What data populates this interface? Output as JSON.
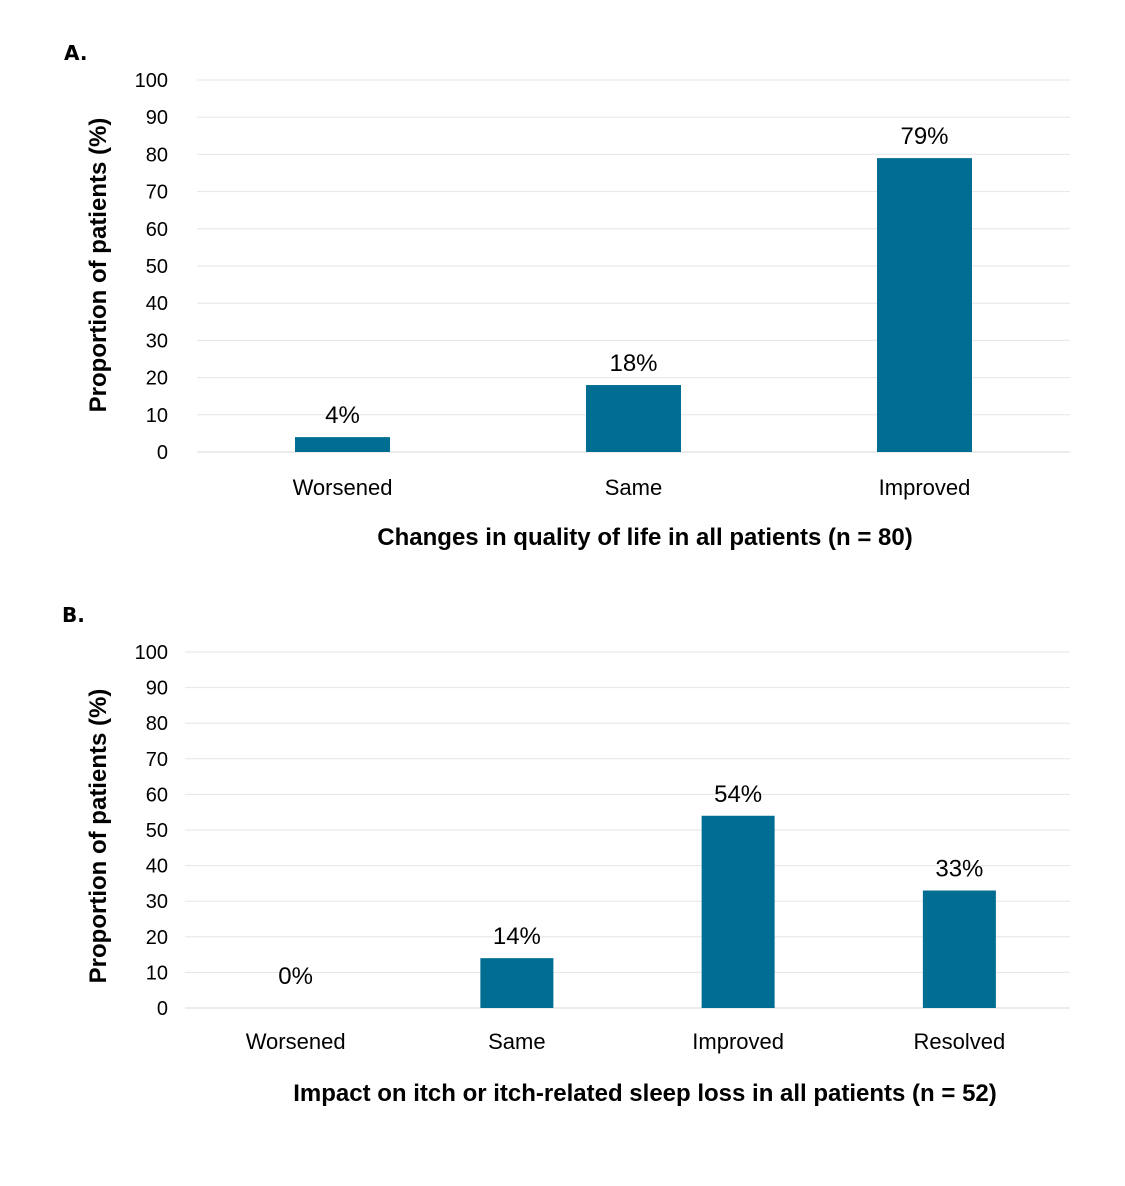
{
  "chart_data": [
    {
      "panel_label": "A.",
      "type": "bar",
      "categories": [
        "Worsened",
        "Same",
        "Improved"
      ],
      "values": [
        4,
        18,
        79
      ],
      "data_labels": [
        "4%",
        "18%",
        "79%"
      ],
      "ylim": [
        0,
        100
      ],
      "yticks": [
        "0",
        "10",
        "20",
        "30",
        "40",
        "50",
        "60",
        "70",
        "80",
        "90",
        "100"
      ],
      "ylabel": "Proportion of patients (%)",
      "xlabel": "Changes in quality of life in all patients (n = 80)",
      "grid": true,
      "bar_color": "#006d93"
    },
    {
      "panel_label": "B.",
      "type": "bar",
      "categories": [
        "Worsened",
        "Same",
        "Improved",
        "Resolved"
      ],
      "values": [
        0,
        14,
        54,
        33
      ],
      "data_labels": [
        "0%",
        "14%",
        "54%",
        "33%"
      ],
      "ylim": [
        0,
        100
      ],
      "yticks": [
        "0",
        "10",
        "20",
        "30",
        "40",
        "50",
        "60",
        "70",
        "80",
        "90",
        "100"
      ],
      "ylabel": "Proportion of patients (%)",
      "xlabel": "Impact on itch or itch-related sleep loss in all patients (n = 52)",
      "grid": true,
      "bar_color": "#006d93"
    }
  ]
}
